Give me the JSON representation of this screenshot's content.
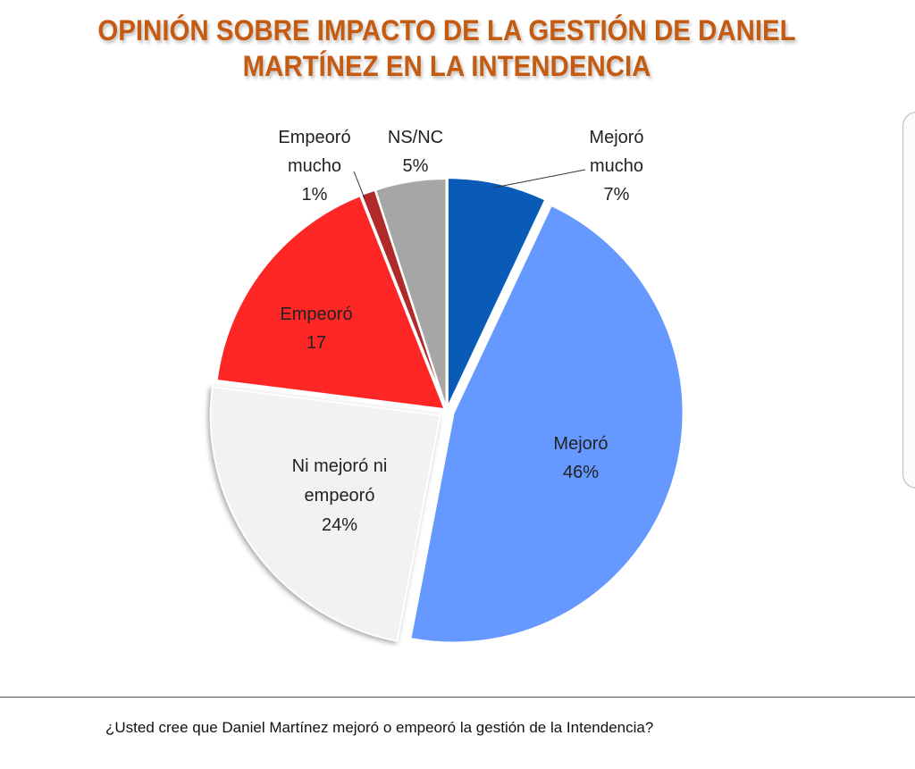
{
  "chart_data": {
    "type": "pie",
    "title": "OPINIÓN SOBRE IMPACTO DE LA GESTIÓN DE DANIEL MARTÍNEZ EN LA INTENDENCIA",
    "slices": [
      {
        "label": "Mejoró mucho",
        "value": 7,
        "value_label": "7%",
        "color": "#0a5bb8"
      },
      {
        "label": "Mejoró",
        "value": 46,
        "value_label": "46%",
        "color": "#6699ff"
      },
      {
        "label": "Ni mejoró ni empeoró",
        "value": 24,
        "value_label": "24%",
        "color": "#f2f2f2"
      },
      {
        "label": "Empeoró",
        "value": 17,
        "value_label": "17",
        "color": "#ff2626"
      },
      {
        "label": "Empeoró mucho",
        "value": 1,
        "value_label": "1%",
        "color": "#b02a2a"
      },
      {
        "label": "NS/NC",
        "value": 5,
        "value_label": "5%",
        "color": "#a6a6a6"
      }
    ],
    "legend": "none",
    "footnote": "¿Usted cree que Daniel Martínez mejoró o empeoró la gestión de la Intendencia?"
  }
}
